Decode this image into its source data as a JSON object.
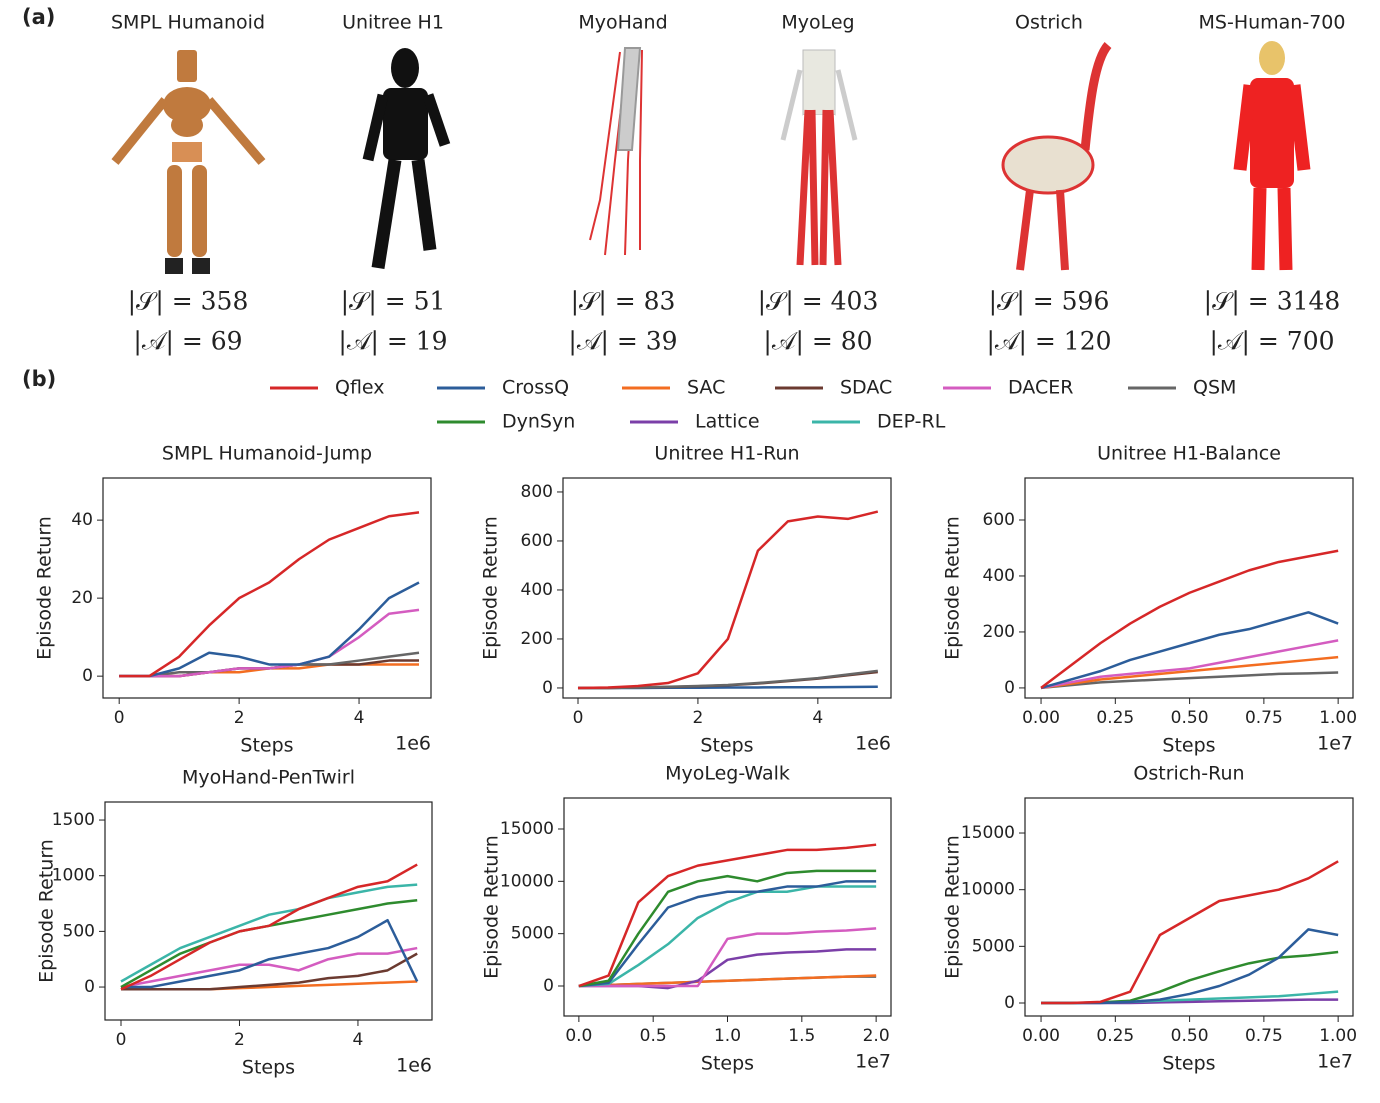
{
  "panel_labels": [
    "(a)",
    "(b)"
  ],
  "models": [
    {
      "name": "SMPL Humanoid",
      "state": "|𝒮| = 358",
      "action": "|𝒜| = 69"
    },
    {
      "name": "Unitree H1",
      "state": "|𝒮| = 51",
      "action": "|𝒜| = 19"
    },
    {
      "name": "MyoHand",
      "state": "|𝒮| = 83",
      "action": "|𝒜| = 39"
    },
    {
      "name": "MyoLeg",
      "state": "|𝒮| = 403",
      "action": "|𝒜| = 80"
    },
    {
      "name": "Ostrich",
      "state": "|𝒮| = 596",
      "action": "|𝒜| = 120"
    },
    {
      "name": "MS-Human-700",
      "state": "|𝒮| = 3148",
      "action": "|𝒜| = 700"
    }
  ],
  "legend": [
    {
      "name": "Qflex",
      "color": "#d62728"
    },
    {
      "name": "CrossQ",
      "color": "#2c5d9a"
    },
    {
      "name": "SAC",
      "color": "#f36d21"
    },
    {
      "name": "SDAC",
      "color": "#6b3a30"
    },
    {
      "name": "DACER",
      "color": "#d45cc0"
    },
    {
      "name": "QSM",
      "color": "#666666"
    },
    {
      "name": "DynSyn",
      "color": "#2e8b2e"
    },
    {
      "name": "Lattice",
      "color": "#7b3fa8"
    },
    {
      "name": "DEP-RL",
      "color": "#3bb5a8"
    }
  ],
  "chart_data": [
    {
      "type": "line",
      "title": "SMPL Humanoid-Jump",
      "x_label": "Steps",
      "y_label": "Episode Return",
      "x_offset": "1e6",
      "x": [
        0,
        0.5,
        1,
        1.5,
        2,
        2.5,
        3,
        3.5,
        4,
        4.5,
        5
      ],
      "xlim": [
        -0.27,
        5.2
      ],
      "ylim": [
        -5.6,
        50.8
      ],
      "xticks": [
        0,
        2,
        4
      ],
      "yticks": [
        0,
        20,
        40
      ],
      "series": [
        {
          "name": "SAC",
          "values": [
            0,
            0,
            0,
            1,
            1,
            2,
            2,
            3,
            3,
            3,
            3
          ]
        },
        {
          "name": "SDAC",
          "values": [
            0,
            0,
            0,
            1,
            2,
            2,
            3,
            3,
            3,
            4,
            4
          ]
        },
        {
          "name": "QSM",
          "values": [
            0,
            0,
            1,
            1,
            2,
            2,
            3,
            3,
            4,
            5,
            6
          ]
        },
        {
          "name": "DACER",
          "values": [
            0,
            0,
            0,
            1,
            2,
            2,
            3,
            5,
            10,
            16,
            17
          ]
        },
        {
          "name": "CrossQ",
          "values": [
            0,
            0,
            2,
            6,
            5,
            3,
            3,
            5,
            12,
            20,
            24
          ]
        },
        {
          "name": "Qflex",
          "values": [
            0,
            0,
            5,
            13,
            20,
            24,
            30,
            35,
            38,
            41,
            42
          ]
        }
      ]
    },
    {
      "type": "line",
      "title": "Unitree H1-Run",
      "x_label": "Steps",
      "y_label": "Episode Return",
      "x_offset": "1e6",
      "x": [
        0,
        0.5,
        1,
        1.5,
        2,
        2.5,
        3,
        3.5,
        4,
        4.5,
        5
      ],
      "xlim": [
        -0.25,
        5.22
      ],
      "ylim": [
        -41,
        857
      ],
      "xticks": [
        0,
        2,
        4
      ],
      "yticks": [
        0,
        200,
        400,
        600,
        800
      ],
      "series": [
        {
          "name": "CrossQ",
          "values": [
            0,
            0,
            0,
            1,
            1,
            2,
            2,
            3,
            3,
            4,
            5
          ]
        },
        {
          "name": "SDAC",
          "values": [
            0,
            0,
            2,
            4,
            7,
            11,
            18,
            28,
            38,
            52,
            65
          ]
        },
        {
          "name": "QSM",
          "values": [
            0,
            0,
            2,
            5,
            8,
            12,
            20,
            30,
            40,
            55,
            70
          ]
        },
        {
          "name": "Qflex",
          "values": [
            0,
            2,
            8,
            20,
            60,
            200,
            560,
            680,
            700,
            690,
            720
          ]
        }
      ]
    },
    {
      "type": "line",
      "title": "Unitree H1-Balance",
      "x_label": "Steps",
      "y_label": "Episode Return",
      "x_offset": "1e7",
      "x": [
        0,
        0.1,
        0.2,
        0.3,
        0.4,
        0.5,
        0.6,
        0.7,
        0.8,
        0.9,
        1.0
      ],
      "xlim": [
        -0.054,
        1.05
      ],
      "ylim": [
        -36,
        750
      ],
      "xticks": [
        {
          "value": 0,
          "label": "0.00"
        },
        {
          "value": 0.25,
          "label": "0.25"
        },
        {
          "value": 0.5,
          "label": "0.50"
        },
        {
          "value": 0.75,
          "label": "0.75"
        },
        {
          "value": 1,
          "label": "1.00"
        }
      ],
      "yticks": [
        0,
        200,
        400,
        600
      ],
      "series": [
        {
          "name": "QSM",
          "values": [
            0,
            10,
            20,
            25,
            30,
            35,
            40,
            45,
            50,
            52,
            55
          ]
        },
        {
          "name": "SAC",
          "values": [
            0,
            15,
            30,
            40,
            50,
            60,
            70,
            80,
            90,
            100,
            110
          ]
        },
        {
          "name": "DACER",
          "values": [
            0,
            20,
            40,
            50,
            60,
            70,
            90,
            110,
            130,
            150,
            170
          ]
        },
        {
          "name": "CrossQ",
          "values": [
            0,
            30,
            60,
            100,
            130,
            160,
            190,
            210,
            240,
            270,
            230
          ]
        },
        {
          "name": "Qflex",
          "values": [
            0,
            80,
            160,
            230,
            290,
            340,
            380,
            420,
            450,
            470,
            490
          ]
        }
      ]
    },
    {
      "type": "line",
      "title": "MyoHand-PenTwirl",
      "x_label": "Steps",
      "y_label": "Episode Return",
      "x_offset": "1e6",
      "x": [
        0,
        0.5,
        1,
        1.5,
        2,
        2.5,
        3,
        3.5,
        4,
        4.5,
        5
      ],
      "xlim": [
        -0.27,
        5.25
      ],
      "ylim": [
        -296,
        1662
      ],
      "xticks": [
        0,
        2,
        4
      ],
      "yticks": [
        0,
        500,
        1000,
        1500
      ],
      "series": [
        {
          "name": "SAC",
          "values": [
            -20,
            -20,
            -20,
            -20,
            -10,
            0,
            10,
            20,
            30,
            40,
            50
          ]
        },
        {
          "name": "SDAC",
          "values": [
            -20,
            -20,
            -20,
            -20,
            0,
            20,
            40,
            80,
            100,
            150,
            300
          ]
        },
        {
          "name": "DACER",
          "values": [
            0,
            50,
            100,
            150,
            200,
            200,
            150,
            250,
            300,
            300,
            350
          ]
        },
        {
          "name": "CrossQ",
          "values": [
            0,
            0,
            50,
            100,
            150,
            250,
            300,
            350,
            450,
            600,
            50
          ]
        },
        {
          "name": "DynSyn",
          "values": [
            0,
            150,
            300,
            400,
            500,
            550,
            600,
            650,
            700,
            750,
            780
          ]
        },
        {
          "name": "DEP-RL",
          "values": [
            50,
            200,
            350,
            450,
            550,
            650,
            700,
            800,
            850,
            900,
            920
          ]
        },
        {
          "name": "Qflex",
          "values": [
            -20,
            100,
            250,
            400,
            500,
            550,
            700,
            800,
            900,
            950,
            1100
          ]
        }
      ]
    },
    {
      "type": "line",
      "title": "MyoLeg-Walk",
      "x_label": "Steps",
      "y_label": "Episode Return",
      "x_offset": "1e7",
      "x": [
        0,
        0.2,
        0.4,
        0.6,
        0.8,
        1.0,
        1.2,
        1.4,
        1.6,
        1.8,
        2.0
      ],
      "xlim": [
        -0.1,
        2.1
      ],
      "ylim": [
        -2866,
        17960
      ],
      "xticks": [
        {
          "value": 0,
          "label": "0.0"
        },
        {
          "value": 0.5,
          "label": "0.5"
        },
        {
          "value": 1,
          "label": "1.0"
        },
        {
          "value": 1.5,
          "label": "1.5"
        },
        {
          "value": 2,
          "label": "2.0"
        }
      ],
      "yticks": [
        0,
        5000,
        10000,
        15000
      ],
      "series": [
        {
          "name": "QSM",
          "values": [
            0,
            100,
            200,
            300,
            400,
            500,
            600,
            700,
            800,
            900,
            900
          ]
        },
        {
          "name": "SAC",
          "values": [
            0,
            100,
            200,
            300,
            400,
            500,
            600,
            700,
            800,
            900,
            1000
          ]
        },
        {
          "name": "Lattice",
          "values": [
            0,
            0,
            0,
            -200,
            500,
            2500,
            3000,
            3200,
            3300,
            3500,
            3500
          ]
        },
        {
          "name": "DACER",
          "values": [
            0,
            0,
            0,
            0,
            0,
            4500,
            5000,
            5000,
            5200,
            5300,
            5500
          ]
        },
        {
          "name": "DEP-RL",
          "values": [
            0,
            200,
            2000,
            4000,
            6500,
            8000,
            9000,
            9000,
            9500,
            9500,
            9500
          ]
        },
        {
          "name": "CrossQ",
          "values": [
            0,
            300,
            4000,
            7500,
            8500,
            9000,
            9000,
            9500,
            9500,
            10000,
            10000
          ]
        },
        {
          "name": "DynSyn",
          "values": [
            0,
            500,
            5000,
            9000,
            10000,
            10500,
            10000,
            10800,
            11000,
            11000,
            11000
          ]
        },
        {
          "name": "Qflex",
          "values": [
            0,
            1000,
            8000,
            10500,
            11500,
            12000,
            12500,
            13000,
            13000,
            13200,
            13500
          ]
        }
      ]
    },
    {
      "type": "line",
      "title": "Ostrich-Run",
      "x_label": "Steps",
      "y_label": "Episode Return",
      "x_offset": "1e7",
      "x": [
        0,
        0.1,
        0.2,
        0.3,
        0.4,
        0.5,
        0.6,
        0.7,
        0.8,
        0.9,
        1.0
      ],
      "xlim": [
        -0.054,
        1.05
      ],
      "ylim": [
        -1147,
        18090
      ],
      "xticks": [
        {
          "value": 0,
          "label": "0.00"
        },
        {
          "value": 0.25,
          "label": "0.25"
        },
        {
          "value": 0.5,
          "label": "0.50"
        },
        {
          "value": 0.75,
          "label": "0.75"
        },
        {
          "value": 1,
          "label": "1.00"
        }
      ],
      "yticks": [
        0,
        5000,
        10000,
        15000
      ],
      "series": [
        {
          "name": "Lattice",
          "values": [
            0,
            0,
            0,
            0,
            50,
            100,
            150,
            200,
            250,
            300,
            300
          ]
        },
        {
          "name": "DEP-RL",
          "values": [
            0,
            0,
            50,
            100,
            200,
            300,
            400,
            500,
            600,
            800,
            1000
          ]
        },
        {
          "name": "DynSyn",
          "values": [
            0,
            0,
            50,
            200,
            1000,
            2000,
            2800,
            3500,
            4000,
            4200,
            4500
          ]
        },
        {
          "name": "CrossQ",
          "values": [
            0,
            0,
            0,
            100,
            300,
            800,
            1500,
            2500,
            4000,
            6500,
            6000
          ]
        },
        {
          "name": "Qflex",
          "values": [
            0,
            0,
            100,
            1000,
            6000,
            7500,
            9000,
            9500,
            10000,
            11000,
            12500
          ]
        }
      ]
    }
  ]
}
